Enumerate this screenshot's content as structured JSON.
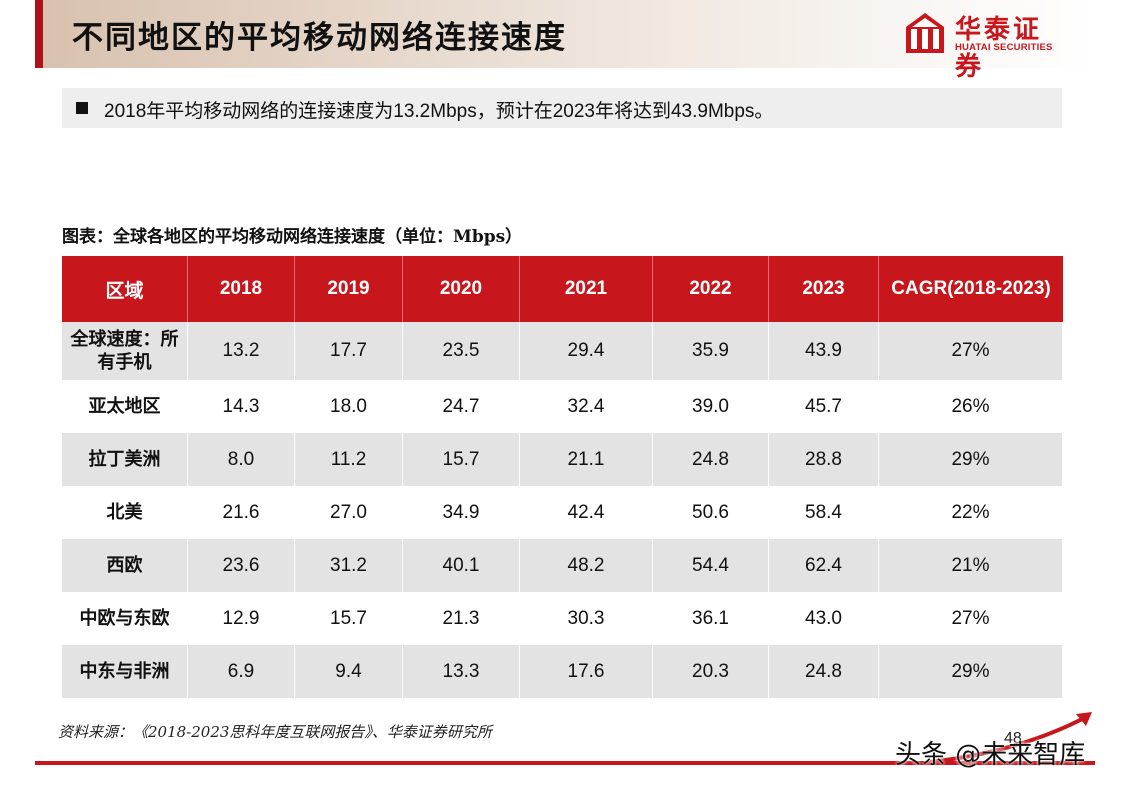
{
  "header": {
    "title": "不同地区的平均移动网络连接速度",
    "logo_cn": "华泰证券",
    "logo_en": "HUATAI SECURITIES"
  },
  "summary": "2018年平均移动网络的连接速度为13.2Mbps，预计在2023年将达到43.9Mbps。",
  "table_title": "图表：全球各地区的平均移动网络连接速度（单位：Mbps）",
  "table": {
    "headers": [
      "区域",
      "2018",
      "2019",
      "2020",
      "2021",
      "2022",
      "2023",
      "CAGR(2018-2023)"
    ],
    "rows": [
      {
        "region_line1": "全球速度：所",
        "region_line2": "有手机",
        "values": [
          "13.2",
          "17.7",
          "23.5",
          "29.4",
          "35.9",
          "43.9",
          "27%"
        ]
      },
      {
        "region_line1": "亚太地区",
        "region_line2": "",
        "values": [
          "14.3",
          "18.0",
          "24.7",
          "32.4",
          "39.0",
          "45.7",
          "26%"
        ]
      },
      {
        "region_line1": "拉丁美洲",
        "region_line2": "",
        "values": [
          "8.0",
          "11.2",
          "15.7",
          "21.1",
          "24.8",
          "28.8",
          "29%"
        ]
      },
      {
        "region_line1": "北美",
        "region_line2": "",
        "values": [
          "21.6",
          "27.0",
          "34.9",
          "42.4",
          "50.6",
          "58.4",
          "22%"
        ]
      },
      {
        "region_line1": "西欧",
        "region_line2": "",
        "values": [
          "23.6",
          "31.2",
          "40.1",
          "48.2",
          "54.4",
          "62.4",
          "21%"
        ]
      },
      {
        "region_line1": "中欧与东欧",
        "region_line2": "",
        "values": [
          "12.9",
          "15.7",
          "21.3",
          "30.3",
          "36.1",
          "43.0",
          "27%"
        ]
      },
      {
        "region_line1": "中东与非洲",
        "region_line2": "",
        "values": [
          "6.9",
          "9.4",
          "13.3",
          "17.6",
          "20.3",
          "24.8",
          "29%"
        ]
      }
    ]
  },
  "source": "资料来源：《2018-2023思科年度互联网报告》、华泰证券研究所",
  "page_number": "48",
  "watermark": "头条 @未来智库",
  "colors": {
    "brand_red": "#c8161d",
    "row_gray": "#e3e3e3",
    "header_tan": "#d8c1ae"
  }
}
